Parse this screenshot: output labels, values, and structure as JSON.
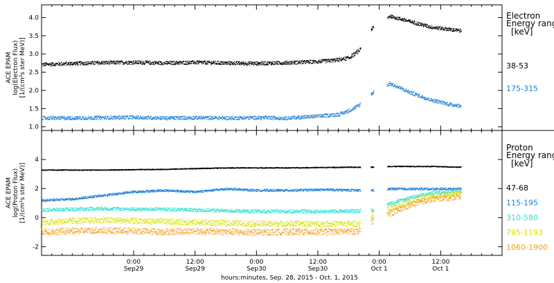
{
  "chart_data": [
    {
      "type": "scatter",
      "panel": "top",
      "ylabel_lines": [
        "ACE EPAM",
        "log(Electron Flux)",
        "[1/(cm²s ster MeV)]"
      ],
      "ylim": [
        0.9,
        4.35
      ],
      "yticks": [
        "1.0",
        "1.5",
        "2.0",
        "2.5",
        "3.0",
        "3.5",
        "4.0"
      ],
      "ytick_values": [
        1.0,
        1.5,
        2.0,
        2.5,
        3.0,
        3.5,
        4.0
      ],
      "legend": {
        "title_lines": [
          "Electron",
          "Energy ranges"
        ],
        "unit": "[keV]",
        "placement": "right"
      },
      "series": [
        {
          "name": "38-53",
          "color": "#000000",
          "points": [
            [
              0,
              2.72
            ],
            [
              6,
              2.75
            ],
            [
              12,
              2.77
            ],
            [
              18,
              2.78
            ],
            [
              24,
              2.76
            ],
            [
              30,
              2.78
            ],
            [
              36,
              2.76
            ],
            [
              42,
              2.75
            ],
            [
              48,
              2.77
            ],
            [
              54,
              2.8
            ],
            [
              58,
              2.85
            ],
            [
              60,
              2.9
            ],
            [
              62,
              3.1
            ],
            [
              63.5,
              3.6
            ],
            [
              68,
              4.05
            ],
            [
              72,
              3.9
            ],
            [
              76,
              3.75
            ],
            [
              80,
              3.68
            ],
            [
              82,
              3.64
            ]
          ],
          "jitter": 0.05
        },
        {
          "name": "175-315",
          "color": "#1c7fd6",
          "points": [
            [
              0,
              1.25
            ],
            [
              6,
              1.25
            ],
            [
              12,
              1.26
            ],
            [
              18,
              1.27
            ],
            [
              24,
              1.25
            ],
            [
              30,
              1.26
            ],
            [
              36,
              1.25
            ],
            [
              42,
              1.26
            ],
            [
              48,
              1.25
            ],
            [
              54,
              1.3
            ],
            [
              58,
              1.35
            ],
            [
              60,
              1.45
            ],
            [
              62,
              1.6
            ],
            [
              63.5,
              1.85
            ],
            [
              68,
              2.2
            ],
            [
              72,
              1.95
            ],
            [
              76,
              1.75
            ],
            [
              80,
              1.62
            ],
            [
              82,
              1.58
            ]
          ],
          "jitter": 0.05
        }
      ]
    },
    {
      "type": "scatter",
      "panel": "bottom",
      "ylabel_lines": [
        "ACE EPAM",
        "log(Proton Flux)",
        "[1/(cm²s ster MeV)]"
      ],
      "ylim": [
        -2.6,
        6.0
      ],
      "yticks": [
        "-2",
        "0",
        "2",
        "4"
      ],
      "ytick_values": [
        -2,
        0,
        2,
        4
      ],
      "legend": {
        "title_lines": [
          "Proton",
          "Energy ranges"
        ],
        "unit": "[keV]",
        "placement": "right"
      },
      "series": [
        {
          "name": "47-68",
          "color": "#000000",
          "points": [
            [
              0,
              3.3
            ],
            [
              12,
              3.3
            ],
            [
              24,
              3.35
            ],
            [
              36,
              3.45
            ],
            [
              48,
              3.45
            ],
            [
              62,
              3.5
            ],
            [
              64.5,
              3.5
            ],
            [
              68,
              3.55
            ],
            [
              76,
              3.55
            ],
            [
              82,
              3.5
            ]
          ],
          "jitter": 0.03
        },
        {
          "name": "115-195",
          "color": "#1c7fd6",
          "points": [
            [
              0,
              1.2
            ],
            [
              6,
              1.3
            ],
            [
              12,
              1.55
            ],
            [
              18,
              1.8
            ],
            [
              24,
              1.9
            ],
            [
              30,
              1.8
            ],
            [
              36,
              2.0
            ],
            [
              42,
              1.9
            ],
            [
              48,
              1.9
            ],
            [
              56,
              1.95
            ],
            [
              62,
              1.9
            ],
            [
              64.5,
              1.9
            ],
            [
              68,
              2.0
            ],
            [
              76,
              2.0
            ],
            [
              82,
              2.0
            ]
          ],
          "jitter": 0.08
        },
        {
          "name": "310-580",
          "color": "#2ee0d0",
          "points": [
            [
              0,
              0.55
            ],
            [
              6,
              0.6
            ],
            [
              12,
              0.65
            ],
            [
              18,
              0.6
            ],
            [
              24,
              0.6
            ],
            [
              30,
              0.55
            ],
            [
              36,
              0.5
            ],
            [
              42,
              0.45
            ],
            [
              48,
              0.45
            ],
            [
              56,
              0.45
            ],
            [
              62,
              0.5
            ],
            [
              64.5,
              0.5
            ],
            [
              68,
              1.0
            ],
            [
              72,
              1.4
            ],
            [
              76,
              1.7
            ],
            [
              82,
              1.9
            ]
          ],
          "jitter": 0.12
        },
        {
          "name": "795-1193",
          "color": "#d8e000",
          "points": [
            [
              0,
              -0.3
            ],
            [
              6,
              -0.2
            ],
            [
              12,
              -0.15
            ],
            [
              18,
              -0.2
            ],
            [
              24,
              -0.25
            ],
            [
              30,
              -0.3
            ],
            [
              36,
              -0.35
            ],
            [
              42,
              -0.4
            ],
            [
              48,
              -0.4
            ],
            [
              56,
              -0.4
            ],
            [
              62,
              -0.4
            ],
            [
              64.5,
              0.2
            ],
            [
              68,
              0.6
            ],
            [
              72,
              1.1
            ],
            [
              76,
              1.5
            ],
            [
              82,
              1.7
            ]
          ],
          "jitter": 0.2
        },
        {
          "name": "1060-1900",
          "color": "#f0a020",
          "points": [
            [
              0,
              -0.95
            ],
            [
              6,
              -0.9
            ],
            [
              12,
              -0.85
            ],
            [
              18,
              -0.9
            ],
            [
              24,
              -0.95
            ],
            [
              30,
              -0.9
            ],
            [
              36,
              -0.95
            ],
            [
              42,
              -1.0
            ],
            [
              48,
              -0.95
            ],
            [
              56,
              -0.95
            ],
            [
              62,
              -0.9
            ],
            [
              64.5,
              -0.2
            ],
            [
              68,
              0.3
            ],
            [
              72,
              0.9
            ],
            [
              76,
              1.3
            ],
            [
              82,
              1.5
            ]
          ],
          "jitter": 0.22
        }
      ]
    }
  ],
  "x_axis": {
    "range_hours": [
      0,
      90
    ],
    "tick_times": [
      "0:00",
      "12:00",
      "0:00",
      "12:00",
      "0:00",
      "12:00"
    ],
    "tick_dates": [
      "Sep29",
      "Sep29",
      "Sep30",
      "Sep30",
      "Oct 1",
      "Oct 1"
    ],
    "tick_hours": [
      18,
      30,
      42,
      54,
      66,
      78
    ],
    "xlabel": "hours:minutes, Sep. 28, 2015 - Oct. 1, 2015"
  }
}
